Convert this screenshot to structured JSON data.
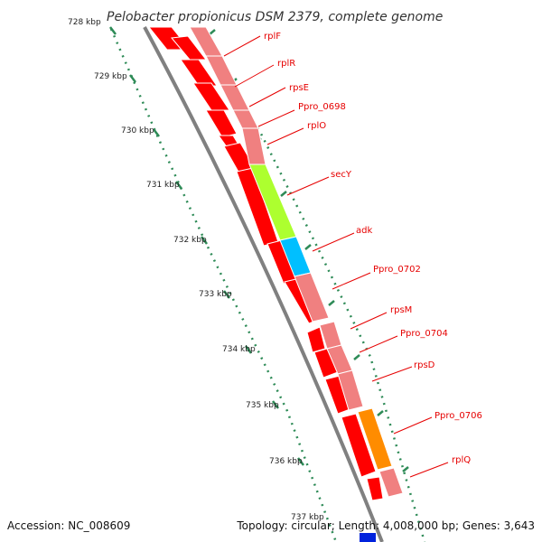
{
  "title": "Pelobacter propionicus DSM 2379, complete genome",
  "ticks": [
    {
      "label": "728 kbp"
    },
    {
      "label": "729 kbp"
    },
    {
      "label": "730 kbp"
    },
    {
      "label": "731 kbp"
    },
    {
      "label": "732 kbp"
    },
    {
      "label": "733 kbp"
    },
    {
      "label": "734 kbp"
    },
    {
      "label": "735 kbp"
    },
    {
      "label": "736 kbp"
    },
    {
      "label": "737 kbp"
    }
  ],
  "genes": [
    {
      "label": "rplF"
    },
    {
      "label": "rplR"
    },
    {
      "label": "rpsE"
    },
    {
      "label": "Ppro_0698"
    },
    {
      "label": "rplO"
    },
    {
      "label": "secY"
    },
    {
      "label": "adk"
    },
    {
      "label": "Ppro_0702"
    },
    {
      "label": "rpsM"
    },
    {
      "label": "Ppro_0704"
    },
    {
      "label": "rpsD"
    },
    {
      "label": "Ppro_0706"
    },
    {
      "label": "rplQ"
    }
  ],
  "footer": {
    "accession": "Accession: NC_008609",
    "topology": "Topology: circular; Length: 4,008,000 bp; Genes: 3,643"
  },
  "colors": {
    "cds": "#ff0000",
    "cds_light": "#f08080",
    "secY": "#adff2f",
    "adk": "#00bfff",
    "Ppro_0706": "#ff8c00",
    "backbone": "#808080",
    "tick": "#2e8b57",
    "label": "#e60000"
  }
}
